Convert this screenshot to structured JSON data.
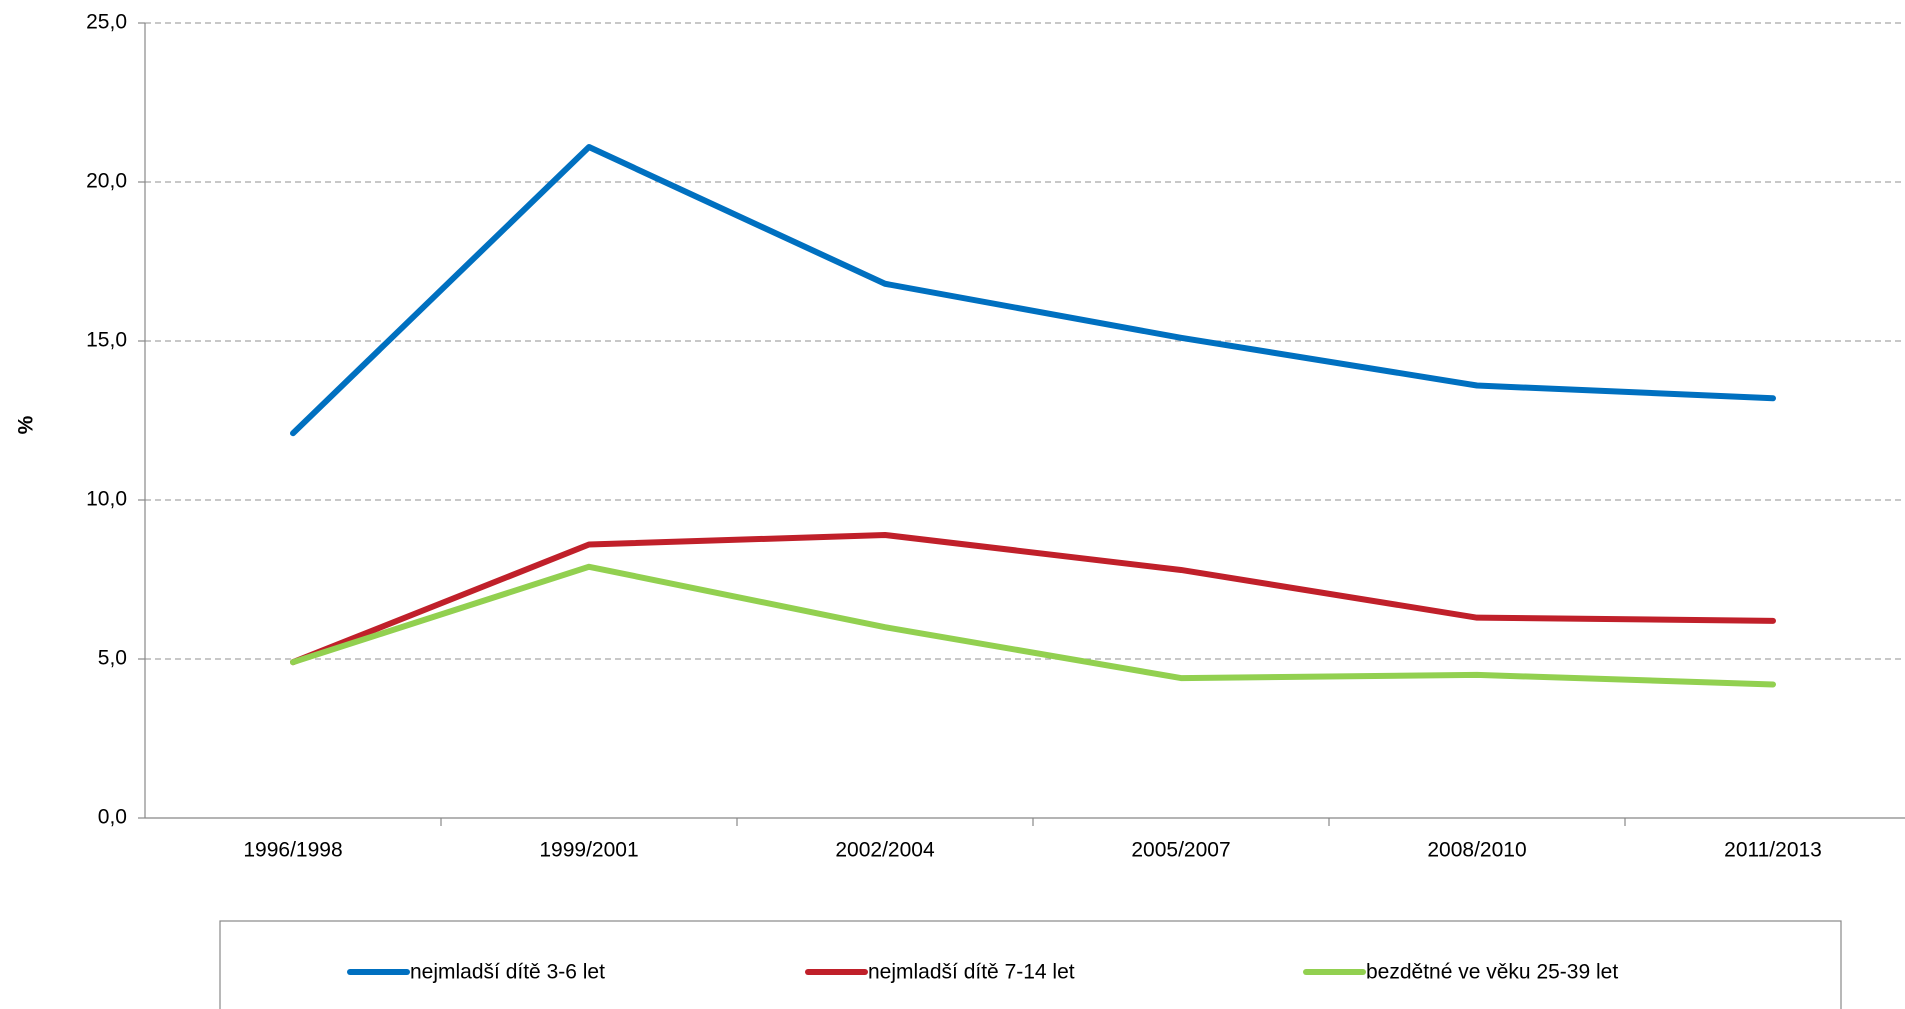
{
  "chart_data": {
    "type": "line",
    "ylabel": "%",
    "categories": [
      "1996/1998",
      "1999/2001",
      "2002/2004",
      "2005/2007",
      "2008/2010",
      "2011/2013"
    ],
    "series": [
      {
        "name": "nejmladší dítě 3-6 let",
        "color": "#0070c0",
        "values": [
          12.1,
          21.1,
          16.8,
          15.1,
          13.6,
          13.2
        ]
      },
      {
        "name": "nejmladší dítě 7-14 let",
        "color": "#c0202a",
        "values": [
          4.9,
          8.6,
          8.9,
          7.8,
          6.3,
          6.2
        ]
      },
      {
        "name": "bezdětné ve věku 25-39 let",
        "color": "#92d050",
        "values": [
          4.9,
          7.9,
          6.0,
          4.4,
          4.5,
          4.2
        ]
      }
    ],
    "ylim": [
      0,
      25
    ],
    "yticks": [
      {
        "value": 0,
        "label": "0,0"
      },
      {
        "value": 5,
        "label": "5,0"
      },
      {
        "value": 10,
        "label": "10,0"
      },
      {
        "value": 15,
        "label": "15,0"
      },
      {
        "value": 20,
        "label": "20,0"
      },
      {
        "value": 25,
        "label": "25,0"
      }
    ],
    "grid": true,
    "legend": "bottom"
  }
}
